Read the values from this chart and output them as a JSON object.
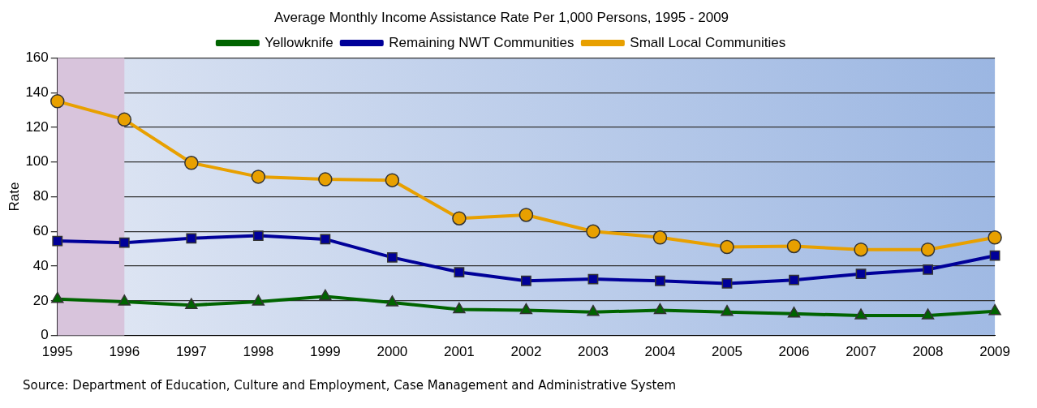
{
  "chart_data": {
    "type": "line",
    "title": "Average Monthly Income Assistance Rate Per 1,000 Persons, 1995 - 2009",
    "ylabel": "Rate",
    "categories": [
      "1995",
      "1996",
      "1997",
      "1998",
      "1999",
      "2000",
      "2001",
      "2002",
      "2003",
      "2004",
      "2005",
      "2006",
      "2007",
      "2008",
      "2009"
    ],
    "series": [
      {
        "name": "Yellowknife",
        "color": "#006400",
        "marker": "triangle",
        "values": [
          21,
          19.5,
          17.5,
          19.5,
          22.5,
          19,
          15,
          14.5,
          13.5,
          14.5,
          13.5,
          12.5,
          11.5,
          11.5,
          14
        ]
      },
      {
        "name": "Remaining NWT Communities",
        "color": "#000099",
        "marker": "square",
        "values": [
          54.5,
          53.5,
          56,
          57.5,
          55.5,
          45,
          36.5,
          31.5,
          32.5,
          31.5,
          30,
          32,
          35.5,
          38,
          46
        ]
      },
      {
        "name": "Small Local Communities",
        "color": "#e8a000",
        "marker": "circle",
        "values": [
          135,
          124.5,
          99.5,
          91.5,
          90,
          89.5,
          67.5,
          69.5,
          60,
          56.5,
          51,
          51.5,
          49.5,
          49.5,
          56.5
        ]
      }
    ],
    "ylim": [
      0,
      160
    ],
    "yticks": [
      0,
      20,
      40,
      60,
      80,
      100,
      120,
      140,
      160
    ],
    "grid": "y",
    "legend": "top",
    "bands": [
      {
        "axis": "x",
        "from": "1995",
        "to": "1996",
        "color": "#d8c4dc"
      }
    ],
    "annotations": [
      "Source: Department of Education, Culture and Employment, Case Management and Administrative System"
    ]
  }
}
